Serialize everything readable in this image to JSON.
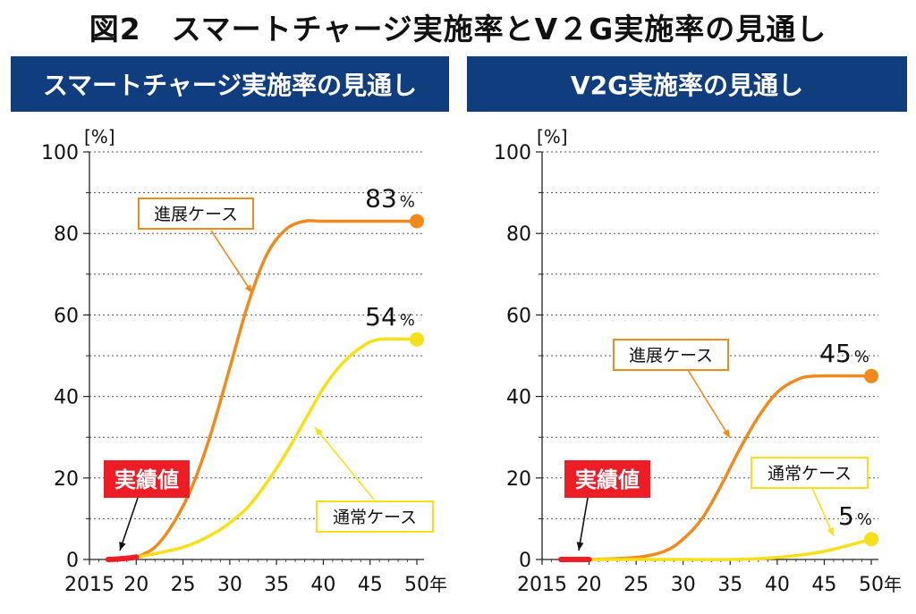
{
  "main_title": "図2　スマートチャージ実施率とV２G実施率の見通し",
  "colors": {
    "header_bg": "#0f3d7e",
    "advanced": "#f08a1c",
    "normal": "#f7e01a",
    "actual": "#ee1c25"
  },
  "chart_data": [
    {
      "type": "line",
      "title": "スマートチャージ実施率の見通し",
      "unit": "[%]",
      "x_unit": "年",
      "xticks": [
        "2015",
        "20",
        "25",
        "30",
        "35",
        "40",
        "45",
        "50"
      ],
      "xlim": [
        2015,
        2050
      ],
      "ylim": [
        0,
        100
      ],
      "yticks": [
        "0",
        "20",
        "40",
        "60",
        "80",
        "100"
      ],
      "grid": "dotted horizontal",
      "series": [
        {
          "name": "進展ケース",
          "x": [
            2020,
            2022,
            2024,
            2026,
            2028,
            2030,
            2032,
            2034,
            2036,
            2038,
            2040,
            2045,
            2050
          ],
          "y": [
            0.5,
            3,
            9,
            18,
            31,
            47,
            63,
            75,
            81,
            83,
            83,
            83,
            83
          ],
          "end_label": "83",
          "end_unit": "%"
        },
        {
          "name": "通常ケース",
          "x": [
            2020,
            2025,
            2028,
            2030,
            2032,
            2034,
            2036,
            2038,
            2040,
            2042,
            2044,
            2046,
            2050
          ],
          "y": [
            0.5,
            3,
            6,
            9,
            13,
            19,
            26,
            34,
            42,
            48,
            52,
            54,
            54
          ],
          "end_label": "54",
          "end_unit": "%"
        },
        {
          "name": "実績値",
          "x": [
            2017,
            2018,
            2019,
            2020
          ],
          "y": [
            0,
            0.1,
            0.3,
            0.6
          ]
        }
      ]
    },
    {
      "type": "line",
      "title": "V2G実施率の見通し",
      "unit": "[%]",
      "x_unit": "年",
      "xticks": [
        "2015",
        "20",
        "25",
        "30",
        "35",
        "40",
        "45",
        "50"
      ],
      "xlim": [
        2015,
        2050
      ],
      "ylim": [
        0,
        100
      ],
      "yticks": [
        "0",
        "20",
        "40",
        "60",
        "80",
        "100"
      ],
      "grid": "dotted horizontal",
      "series": [
        {
          "name": "進展ケース",
          "x": [
            2020,
            2025,
            2028,
            2030,
            2032,
            2034,
            2036,
            2038,
            2040,
            2042,
            2044,
            2050
          ],
          "y": [
            0,
            0.5,
            2,
            5,
            10,
            18,
            27,
            35,
            41,
            44,
            45,
            45
          ],
          "end_label": "45",
          "end_unit": "%"
        },
        {
          "name": "通常ケース",
          "x": [
            2020,
            2030,
            2035,
            2040,
            2045,
            2050
          ],
          "y": [
            0,
            0,
            0,
            0.5,
            2,
            5
          ],
          "end_label": "5",
          "end_unit": "%"
        },
        {
          "name": "実績値",
          "x": [
            2017,
            2018,
            2019,
            2020
          ],
          "y": [
            0,
            0,
            0,
            0
          ]
        }
      ]
    }
  ]
}
